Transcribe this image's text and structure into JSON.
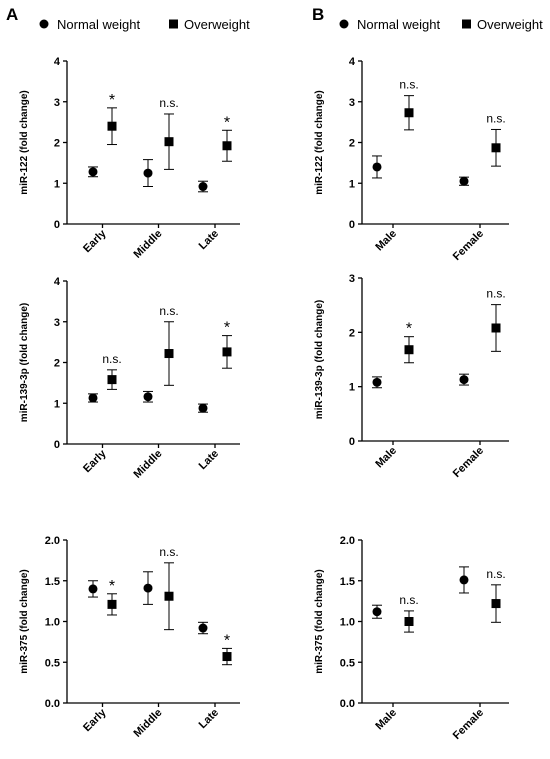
{
  "panel_labels": [
    "A",
    "B"
  ],
  "legend": {
    "normal_weight": "Normal weight",
    "overweight": "Overweight"
  },
  "chart_data": [
    {
      "type": "scatter",
      "panel": "A",
      "ylabel": "miR-122 (fold change)",
      "ylim": [
        0,
        4
      ],
      "yticks": [
        "0",
        "1",
        "2",
        "3",
        "4"
      ],
      "categories": [
        "Early",
        "Middle",
        "Late"
      ],
      "series": [
        {
          "name": "Normal weight",
          "values": [
            1.28,
            1.25,
            0.92
          ],
          "err": [
            0.12,
            0.33,
            0.13
          ]
        },
        {
          "name": "Overweight",
          "values": [
            2.4,
            2.02,
            1.92
          ],
          "err": [
            0.45,
            0.68,
            0.38
          ]
        }
      ],
      "annotations": [
        "*",
        "n.s.",
        "*"
      ]
    },
    {
      "type": "scatter",
      "panel": "B",
      "ylabel": "miR-122 (fold change)",
      "ylim": [
        0,
        4
      ],
      "yticks": [
        "0",
        "1",
        "2",
        "3",
        "4"
      ],
      "categories": [
        "Male",
        "Female"
      ],
      "series": [
        {
          "name": "Normal weight",
          "values": [
            1.4,
            1.05
          ],
          "err": [
            0.27,
            0.1
          ]
        },
        {
          "name": "Overweight",
          "values": [
            2.73,
            1.87
          ],
          "err": [
            0.42,
            0.45
          ]
        }
      ],
      "annotations": [
        "n.s.",
        "n.s."
      ]
    },
    {
      "type": "scatter",
      "panel": "A",
      "ylabel": "miR-139-3p (fold change)",
      "ylim": [
        0,
        4
      ],
      "yticks": [
        "0",
        "1",
        "2",
        "3",
        "4"
      ],
      "categories": [
        "Early",
        "Middle",
        "Late"
      ],
      "series": [
        {
          "name": "Normal weight",
          "values": [
            1.13,
            1.16,
            0.88
          ],
          "err": [
            0.1,
            0.13,
            0.1
          ]
        },
        {
          "name": "Overweight",
          "values": [
            1.58,
            2.22,
            2.26
          ],
          "err": [
            0.24,
            0.78,
            0.4
          ]
        }
      ],
      "annotations": [
        "n.s.",
        "n.s.",
        "*"
      ]
    },
    {
      "type": "scatter",
      "panel": "B",
      "ylabel": "miR-139-3p (fold change)",
      "ylim": [
        0,
        3
      ],
      "yticks": [
        "0",
        "1",
        "2",
        "3"
      ],
      "categories": [
        "Male",
        "Female"
      ],
      "series": [
        {
          "name": "Normal weight",
          "values": [
            1.08,
            1.13
          ],
          "err": [
            0.1,
            0.1
          ]
        },
        {
          "name": "Overweight",
          "values": [
            1.68,
            2.08
          ],
          "err": [
            0.24,
            0.43
          ]
        }
      ],
      "annotations": [
        "*",
        "n.s."
      ]
    },
    {
      "type": "scatter",
      "panel": "A",
      "ylabel": "miR-375 (fold change)",
      "ylim": [
        0,
        2
      ],
      "yticks": [
        "0.0",
        "0.5",
        "1.0",
        "1.5",
        "2.0"
      ],
      "categories": [
        "Early",
        "Middle",
        "Late"
      ],
      "series": [
        {
          "name": "Normal weight",
          "values": [
            1.4,
            1.41,
            0.92
          ],
          "err": [
            0.1,
            0.2,
            0.07
          ]
        },
        {
          "name": "Overweight",
          "values": [
            1.21,
            1.31,
            0.57
          ],
          "err": [
            0.13,
            0.41,
            0.1
          ]
        }
      ],
      "annotations": [
        "*",
        "n.s.",
        "*"
      ]
    },
    {
      "type": "scatter",
      "panel": "B",
      "ylabel": "miR-375 (fold change)",
      "ylim": [
        0,
        2
      ],
      "yticks": [
        "0.0",
        "0.5",
        "1.0",
        "1.5",
        "2.0"
      ],
      "categories": [
        "Male",
        "Female"
      ],
      "series": [
        {
          "name": "Normal weight",
          "values": [
            1.12,
            1.51
          ],
          "err": [
            0.08,
            0.16
          ]
        },
        {
          "name": "Overweight",
          "values": [
            1.0,
            1.22
          ],
          "err": [
            0.13,
            0.23
          ]
        }
      ],
      "annotations": [
        "n.s.",
        "n.s."
      ]
    }
  ]
}
